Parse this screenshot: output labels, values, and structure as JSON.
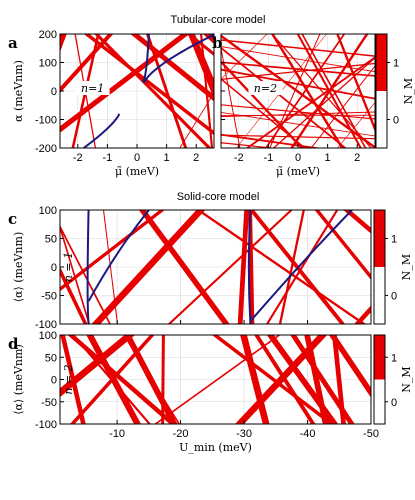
{
  "headers": {
    "tubular": "Tubular-core model",
    "solid": "Solid-core model"
  },
  "colors": {
    "band": "#e60000",
    "curve": "#1a1a80",
    "grid": "#d9d9d9"
  },
  "chart_data": [
    {
      "id": "a",
      "type": "heatmap",
      "panel_label": "a",
      "annotation": "n=1",
      "xlabel": "μ̃ (meV)",
      "ylabel": "α (meVnm)",
      "xlim": [
        -2.6,
        2.6
      ],
      "ylim": [
        -200,
        200
      ],
      "xticks": [
        -2,
        -1,
        0,
        1,
        2
      ],
      "xticklabels": [
        "-2",
        "-1",
        "0",
        "1",
        "2"
      ],
      "yticks": [
        -200,
        -100,
        0,
        100,
        200
      ],
      "yticklabels": [
        "-200",
        "-100",
        "0",
        "100",
        "200"
      ],
      "colorbar": {
        "label": "N_M",
        "ticks": [
          "1",
          "0"
        ]
      }
    },
    {
      "id": "b",
      "type": "heatmap",
      "panel_label": "b",
      "annotation": "n=2",
      "xlabel": "μ̃ (meV)",
      "ylabel": "",
      "xlim": [
        -2.6,
        2.6
      ],
      "ylim": [
        -200,
        200
      ],
      "xticks": [
        -2,
        -1,
        0,
        1,
        2
      ],
      "xticklabels": [
        "-2",
        "-1",
        "0",
        "1",
        "2"
      ],
      "yticks": [
        -200,
        -100,
        0,
        100,
        200
      ],
      "yticklabels": [],
      "colorbar": {
        "label": "N_M",
        "ticks": [
          "1",
          "0"
        ]
      }
    },
    {
      "id": "c",
      "type": "heatmap",
      "panel_label": "c",
      "annotation": "n = 1",
      "xlabel": "",
      "ylabel": "⟨α⟩ (meVnm)",
      "xlim": [
        -1,
        -50
      ],
      "ylim": [
        -100,
        100
      ],
      "xticks": [
        -10,
        -20,
        -30,
        -40,
        -50
      ],
      "xticklabels": [],
      "yticks": [
        -100,
        -50,
        0,
        50,
        100
      ],
      "yticklabels": [
        "-100",
        "-50",
        "0",
        "50",
        "100"
      ],
      "colorbar": {
        "label": "N_M",
        "ticks": [
          "1",
          "0"
        ]
      }
    },
    {
      "id": "d",
      "type": "heatmap",
      "panel_label": "d",
      "annotation": "n = 2",
      "xlabel": "U_min (meV)",
      "ylabel": "⟨α⟩ (meVnm)",
      "xlim": [
        -1,
        -50
      ],
      "ylim": [
        -100,
        100
      ],
      "xticks": [
        -10,
        -20,
        -30,
        -40,
        -50
      ],
      "xticklabels": [
        "-10",
        "-20",
        "-30",
        "-40",
        "-50"
      ],
      "yticks": [
        -100,
        -50,
        0,
        50,
        100
      ],
      "yticklabels": [
        "-100",
        "-50",
        "0",
        "50",
        "100"
      ],
      "colorbar": {
        "label": "N_M",
        "ticks": [
          "1",
          "0"
        ]
      }
    }
  ]
}
